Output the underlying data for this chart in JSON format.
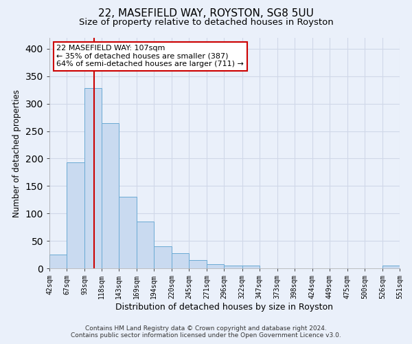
{
  "title1": "22, MASEFIELD WAY, ROYSTON, SG8 5UU",
  "title2": "Size of property relative to detached houses in Royston",
  "xlabel": "Distribution of detached houses by size in Royston",
  "ylabel": "Number of detached properties",
  "footnote1": "Contains HM Land Registry data © Crown copyright and database right 2024.",
  "footnote2": "Contains public sector information licensed under the Open Government Licence v3.0.",
  "bin_edges": [
    42,
    67,
    93,
    118,
    143,
    169,
    194,
    220,
    245,
    271,
    296,
    322,
    347,
    373,
    398,
    424,
    449,
    475,
    500,
    526,
    551
  ],
  "bar_heights": [
    25,
    193,
    328,
    264,
    130,
    85,
    40,
    27,
    15,
    7,
    5,
    5,
    0,
    0,
    0,
    0,
    0,
    0,
    0,
    5
  ],
  "bar_color": "#c9daf0",
  "bar_edge_color": "#6aaad4",
  "property_size": 107,
  "vline_color": "#cc0000",
  "annotation_text": "22 MASEFIELD WAY: 107sqm\n← 35% of detached houses are smaller (387)\n64% of semi-detached houses are larger (711) →",
  "annotation_box_color": "#ffffff",
  "annotation_box_edge_color": "#cc0000",
  "ylim": [
    0,
    420
  ],
  "background_color": "#eaf0fa",
  "grid_color": "#d0d8e8",
  "title1_fontsize": 11,
  "title2_fontsize": 9.5,
  "ylabel_fontsize": 8.5,
  "xlabel_fontsize": 9
}
